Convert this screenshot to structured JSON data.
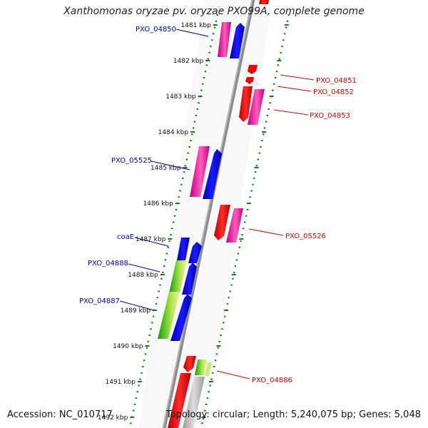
{
  "title": "Xanthomonas oryzae pv. oryzae PXO99A, complete genome",
  "footer": {
    "accession": "Accession: NC_010717",
    "summary": "Topology: circular; Length: 5,240,075 bp; Genes: 5,048"
  },
  "colors": {
    "backbone": "#8c8c8c",
    "ruler": "#1a7a1a",
    "forward_label": "#0000bb",
    "reverse_label": "#dd0000",
    "blue_gene": "#0000ee",
    "magenta_gene": "#ee1c9a",
    "red_gene": "#ee0000",
    "green_gene": "#3aa51a",
    "lime_gene": "#b4e04a",
    "grey_gene": "#b8b8b8"
  },
  "ruler": {
    "tick_labels": [
      {
        "kbp": 1481,
        "text": "1481 kbp"
      },
      {
        "kbp": 1482,
        "text": "1482 kbp"
      },
      {
        "kbp": 1483,
        "text": "1483 kbp"
      },
      {
        "kbp": 1484,
        "text": "1484 kbp"
      },
      {
        "kbp": 1485,
        "text": "1485 kbp"
      },
      {
        "kbp": 1486,
        "text": "1486 kbp"
      },
      {
        "kbp": 1487,
        "text": "1487 kbp"
      },
      {
        "kbp": 1488,
        "text": "1488 kbp"
      },
      {
        "kbp": 1489,
        "text": "1489 kbp"
      },
      {
        "kbp": 1490,
        "text": "1490 kbp"
      },
      {
        "kbp": 1491,
        "text": "1491 kbp"
      },
      {
        "kbp": 1492,
        "text": "1492 kbp"
      }
    ]
  },
  "gene_labels": [
    {
      "name": "PXO_04850",
      "strand": "forward"
    },
    {
      "name": "PXO_04851",
      "strand": "reverse"
    },
    {
      "name": "PXO_04852",
      "strand": "reverse"
    },
    {
      "name": "PXO_04853",
      "strand": "reverse"
    },
    {
      "name": "PXO_05525",
      "strand": "forward"
    },
    {
      "name": "PXO_05526",
      "strand": "reverse"
    },
    {
      "name": "coaE",
      "strand": "forward"
    },
    {
      "name": "PXO_04888",
      "strand": "forward"
    },
    {
      "name": "PXO_04887",
      "strand": "forward"
    },
    {
      "name": "PXO_04886",
      "strand": "reverse"
    }
  ]
}
